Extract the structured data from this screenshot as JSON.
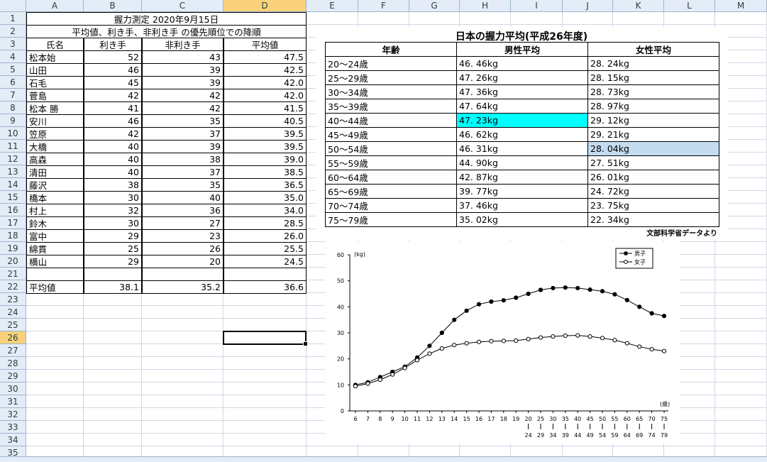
{
  "columns": [
    "A",
    "B",
    "C",
    "D",
    "E",
    "F",
    "G",
    "H",
    "I",
    "J",
    "K",
    "L",
    "M"
  ],
  "selected_column": "D",
  "rows": [
    "1",
    "2",
    "3",
    "4",
    "5",
    "6",
    "7",
    "8",
    "9",
    "10",
    "11",
    "12",
    "13",
    "14",
    "15",
    "16",
    "17",
    "18",
    "19",
    "20",
    "21",
    "22",
    "23",
    "24",
    "25",
    "26",
    "27",
    "28",
    "29",
    "30",
    "31",
    "32",
    "33",
    "34",
    "35"
  ],
  "selected_row": "26",
  "sheet": {
    "title": "握力測定  2020年9月15日",
    "subtitle": "平均値、利き手、非利き手  の優先順位での降順",
    "headers": [
      "氏名",
      "利き手",
      "非利き手",
      "平均値"
    ],
    "data": [
      [
        "松本始",
        "52",
        "43",
        "47.5"
      ],
      [
        "山田",
        "46",
        "39",
        "42.5"
      ],
      [
        "石毛",
        "45",
        "39",
        "42.0"
      ],
      [
        "菅島",
        "42",
        "42",
        "42.0"
      ],
      [
        "松本  勝",
        "41",
        "42",
        "41.5"
      ],
      [
        "安川",
        "46",
        "35",
        "40.5"
      ],
      [
        "笠原",
        "42",
        "37",
        "39.5"
      ],
      [
        "大橋",
        "40",
        "39",
        "39.5"
      ],
      [
        "高森",
        "40",
        "38",
        "39.0"
      ],
      [
        "清田",
        "40",
        "37",
        "38.5"
      ],
      [
        "藤沢",
        "38",
        "35",
        "36.5"
      ],
      [
        "橋本",
        "30",
        "40",
        "35.0"
      ],
      [
        "村上",
        "32",
        "36",
        "34.0"
      ],
      [
        "鈴木",
        "30",
        "27",
        "28.5"
      ],
      [
        "富中",
        "29",
        "23",
        "26.0"
      ],
      [
        "綿貫",
        "25",
        "26",
        "25.5"
      ],
      [
        "横山",
        "29",
        "20",
        "24.5"
      ]
    ],
    "avg_label": "平均値",
    "avg_values": [
      "38.1",
      "35.2",
      "36.6"
    ]
  },
  "grip": {
    "title": "日本の握力平均(平成26年度)",
    "headers": [
      "年齢",
      "男性平均",
      "女性平均"
    ],
    "rows": [
      [
        "20～24歳",
        "46. 46kg",
        "28. 24kg"
      ],
      [
        "25～29歳",
        "47. 26kg",
        "28. 15kg"
      ],
      [
        "30～34歳",
        "47. 36kg",
        "28. 73kg"
      ],
      [
        "35～39歳",
        "47. 64kg",
        "28. 97kg"
      ],
      [
        "40～44歳",
        "47. 23kg",
        "29. 12kg"
      ],
      [
        "45～49歳",
        "46. 62kg",
        "29. 21kg"
      ],
      [
        "50～54歳",
        "46. 31kg",
        "28. 04kg"
      ],
      [
        "55～59歳",
        "44. 90kg",
        "27. 51kg"
      ],
      [
        "60～64歳",
        "42. 87kg",
        "26. 01kg"
      ],
      [
        "65～69歳",
        "39. 77kg",
        "24. 72kg"
      ],
      [
        "70～74歳",
        "37. 46kg",
        "23. 75kg"
      ],
      [
        "75～79歳",
        "35. 02kg",
        "22. 34kg"
      ]
    ],
    "highlight_cyan": {
      "row": 4,
      "col": 1
    },
    "highlight_blue": {
      "row": 6,
      "col": 2
    },
    "source": "文部科学省データより",
    "cyan_color": "#00ffff",
    "blue_color": "#c5dcf0"
  },
  "chart_data": {
    "type": "line",
    "ylabel": "(kg)",
    "xlabel": "(歳)",
    "ylim": [
      0,
      60
    ],
    "yticks": [
      "0",
      "10",
      "20",
      "30",
      "40",
      "50",
      "60"
    ],
    "categories": [
      "6",
      "7",
      "8",
      "9",
      "10",
      "11",
      "12",
      "13",
      "14",
      "15",
      "16",
      "17",
      "18",
      "19",
      "20",
      "25",
      "30",
      "35",
      "40",
      "45",
      "50",
      "55",
      "60",
      "65",
      "70",
      "75"
    ],
    "categories_second_line": [
      "",
      "",
      "",
      "",
      "",
      "",
      "",
      "",
      "",
      "",
      "",
      "",
      "",
      "",
      "24",
      "29",
      "34",
      "39",
      "44",
      "49",
      "54",
      "59",
      "64",
      "69",
      "74",
      "79"
    ],
    "series": [
      {
        "name": "男子",
        "marker": "filled",
        "values": [
          10.0,
          11.0,
          13.0,
          15.0,
          17.0,
          20.5,
          25.0,
          30.0,
          35.0,
          38.5,
          41.0,
          42.0,
          42.5,
          43.5,
          45.0,
          46.5,
          47.2,
          47.4,
          47.2,
          46.6,
          46.0,
          44.8,
          42.6,
          40.0,
          37.5,
          36.5
        ]
      },
      {
        "name": "女子",
        "marker": "open",
        "values": [
          9.5,
          10.5,
          12.0,
          14.0,
          16.5,
          19.5,
          22.0,
          24.0,
          25.3,
          26.0,
          26.5,
          26.8,
          26.9,
          27.0,
          27.6,
          28.2,
          28.6,
          28.9,
          29.0,
          28.6,
          28.0,
          27.2,
          26.0,
          24.7,
          23.7,
          23.0
        ]
      }
    ]
  }
}
